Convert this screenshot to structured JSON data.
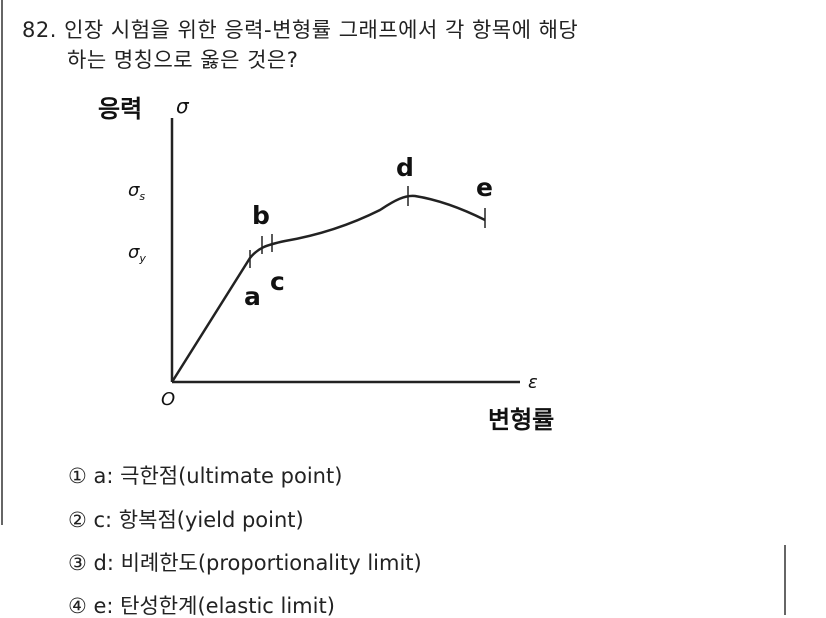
{
  "question": {
    "number": "82.",
    "lines": [
      "인장 시험을 위한 응력-변형률 그래프에서 각 항목에 해당",
      "하는 명칭으로 옳은 것은?"
    ]
  },
  "diagram": {
    "y_axis_label": "응력",
    "y_symbol": "σ",
    "sigma_s": {
      "symbol": "σ",
      "sub": "s"
    },
    "sigma_y": {
      "symbol": "σ",
      "sub": "y"
    },
    "points": {
      "a": "a",
      "b": "b",
      "c": "c",
      "d": "d",
      "e": "e"
    },
    "origin": "O",
    "x_symbol": "ε",
    "x_axis_label": "변형률"
  },
  "options": [
    "① a: 극한점(ultimate point)",
    "② c: 항복점(yield point)",
    "③ d: 비례한도(proportionality limit)",
    "④ e: 탄성한계(elastic limit)"
  ]
}
